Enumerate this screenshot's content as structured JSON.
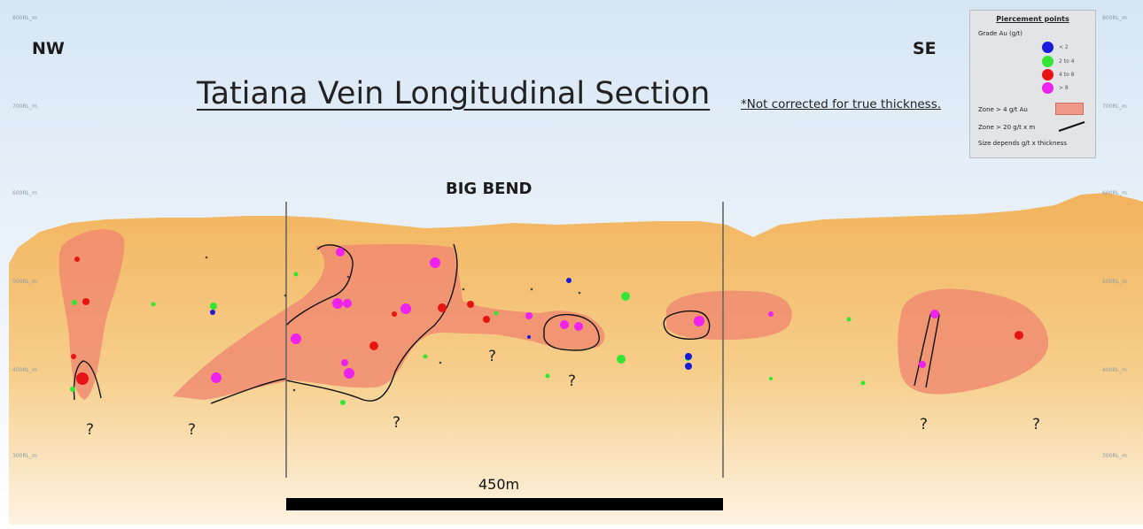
{
  "title": "Tatiana Vein Longitudinal Section",
  "note": "*Not corrected for true thickness.",
  "directions": {
    "left": "NW",
    "right": "SE"
  },
  "region_label": "BIG BEND",
  "scale_label": "450m",
  "unknown_marker": "?",
  "rl_labels": {
    "left": [
      "800RL_m",
      "700RL_m",
      "600RL_m",
      "500RL_m",
      "400RL_m",
      "300RL_m"
    ],
    "right": [
      "800RL_m",
      "700RL_m",
      "600RL_m",
      "500RL_m",
      "400RL_m",
      "300RL_m"
    ]
  },
  "legend": {
    "title": "Piercement points",
    "grade_label": "Grade Au (g/t)",
    "items": [
      {
        "label": "< 2",
        "color": "#1a1adc"
      },
      {
        "label": "2 to 4",
        "color": "#33e633"
      },
      {
        "label": "4 to 8",
        "color": "#e81414"
      },
      {
        "label": "> 8",
        "color": "#ee22ee"
      }
    ],
    "zone_label": "Zone > 4 g/t Au",
    "zone_line_label": "Zone > 20 g/t x m",
    "size_note": "Size depends g/t x thickness"
  },
  "colors": {
    "sky_top": "#dbe8f4",
    "ground": "#f3b963",
    "zone_fill": "#f0876f",
    "lt2": "#1a1adc",
    "g2to4": "#33e633",
    "g4to8": "#e81414",
    "gt8": "#ee22ee"
  }
}
